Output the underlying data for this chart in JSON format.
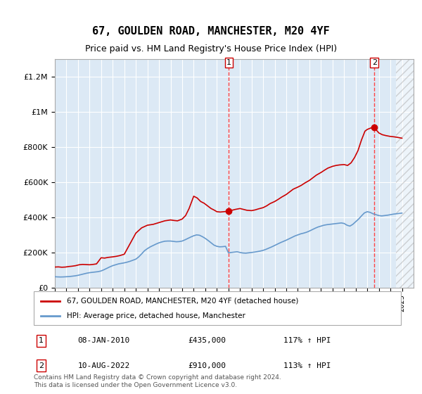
{
  "title": "67, GOULDEN ROAD, MANCHESTER, M20 4YF",
  "subtitle": "Price paid vs. HM Land Registry's House Price Index (HPI)",
  "ylabel_ticks": [
    "£0",
    "£200K",
    "£400K",
    "£600K",
    "£800K",
    "£1M",
    "£1.2M"
  ],
  "ytick_values": [
    0,
    200000,
    400000,
    600000,
    800000,
    1000000,
    1200000
  ],
  "ylim": [
    0,
    1300000
  ],
  "xlim_start": 1995.0,
  "xlim_end": 2026.0,
  "background_color": "#dce9f5",
  "hatch_color": "#c0c0c0",
  "red_line_color": "#cc0000",
  "blue_line_color": "#6699cc",
  "dashed_line_color": "#ff4444",
  "marker_color": "#cc0000",
  "marker1_x": 2010.03,
  "marker1_y": 435000,
  "marker2_x": 2022.61,
  "marker2_y": 910000,
  "annotation1_date": "08-JAN-2010",
  "annotation1_price": "£435,000",
  "annotation1_hpi": "117% ↑ HPI",
  "annotation2_date": "10-AUG-2022",
  "annotation2_price": "£910,000",
  "annotation2_hpi": "113% ↑ HPI",
  "legend_label1": "67, GOULDEN ROAD, MANCHESTER, M20 4YF (detached house)",
  "legend_label2": "HPI: Average price, detached house, Manchester",
  "footer_text": "Contains HM Land Registry data © Crown copyright and database right 2024.\nThis data is licensed under the Open Government Licence v3.0.",
  "hpi_data": {
    "years": [
      1995.0,
      1995.25,
      1995.5,
      1995.75,
      1996.0,
      1996.25,
      1996.5,
      1996.75,
      1997.0,
      1997.25,
      1997.5,
      1997.75,
      1998.0,
      1998.25,
      1998.5,
      1998.75,
      1999.0,
      1999.25,
      1999.5,
      1999.75,
      2000.0,
      2000.25,
      2000.5,
      2000.75,
      2001.0,
      2001.25,
      2001.5,
      2001.75,
      2002.0,
      2002.25,
      2002.5,
      2002.75,
      2003.0,
      2003.25,
      2003.5,
      2003.75,
      2004.0,
      2004.25,
      2004.5,
      2004.75,
      2005.0,
      2005.25,
      2005.5,
      2005.75,
      2006.0,
      2006.25,
      2006.5,
      2006.75,
      2007.0,
      2007.25,
      2007.5,
      2007.75,
      2008.0,
      2008.25,
      2008.5,
      2008.75,
      2009.0,
      2009.25,
      2009.5,
      2009.75,
      2010.0,
      2010.25,
      2010.5,
      2010.75,
      2011.0,
      2011.25,
      2011.5,
      2011.75,
      2012.0,
      2012.25,
      2012.5,
      2012.75,
      2013.0,
      2013.25,
      2013.5,
      2013.75,
      2014.0,
      2014.25,
      2014.5,
      2014.75,
      2015.0,
      2015.25,
      2015.5,
      2015.75,
      2016.0,
      2016.25,
      2016.5,
      2016.75,
      2017.0,
      2017.25,
      2017.5,
      2017.75,
      2018.0,
      2018.25,
      2018.5,
      2018.75,
      2019.0,
      2019.25,
      2019.5,
      2019.75,
      2020.0,
      2020.25,
      2020.5,
      2020.75,
      2021.0,
      2021.25,
      2021.5,
      2021.75,
      2022.0,
      2022.25,
      2022.5,
      2022.75,
      2023.0,
      2023.25,
      2023.5,
      2023.75,
      2024.0,
      2024.25,
      2024.5,
      2024.75,
      2025.0
    ],
    "values": [
      62000,
      61000,
      60500,
      61000,
      62000,
      63000,
      65000,
      67000,
      70000,
      74000,
      78000,
      82000,
      85000,
      87000,
      89000,
      91000,
      95000,
      102000,
      110000,
      118000,
      125000,
      130000,
      135000,
      138000,
      141000,
      145000,
      150000,
      156000,
      162000,
      175000,
      192000,
      210000,
      222000,
      232000,
      240000,
      248000,
      255000,
      260000,
      264000,
      265000,
      265000,
      263000,
      261000,
      262000,
      265000,
      272000,
      280000,
      288000,
      295000,
      300000,
      298000,
      290000,
      280000,
      268000,
      255000,
      242000,
      235000,
      232000,
      233000,
      235000,
      198000,
      200000,
      202000,
      204000,
      200000,
      197000,
      196000,
      198000,
      200000,
      202000,
      205000,
      208000,
      212000,
      218000,
      225000,
      232000,
      240000,
      248000,
      256000,
      263000,
      270000,
      278000,
      286000,
      294000,
      300000,
      306000,
      310000,
      315000,
      322000,
      330000,
      338000,
      345000,
      350000,
      355000,
      358000,
      360000,
      362000,
      364000,
      366000,
      368000,
      365000,
      355000,
      350000,
      360000,
      375000,
      390000,
      408000,
      425000,
      432000,
      428000,
      420000,
      415000,
      410000,
      408000,
      410000,
      412000,
      415000,
      418000,
      420000,
      422000,
      424000
    ]
  },
  "price_data": {
    "years": [
      1995.5,
      1998.0,
      1999.0,
      2001.5,
      2004.0,
      2007.0,
      2010.03,
      2022.61
    ],
    "values": [
      117000,
      130000,
      170000,
      250000,
      370000,
      520000,
      435000,
      910000
    ]
  }
}
